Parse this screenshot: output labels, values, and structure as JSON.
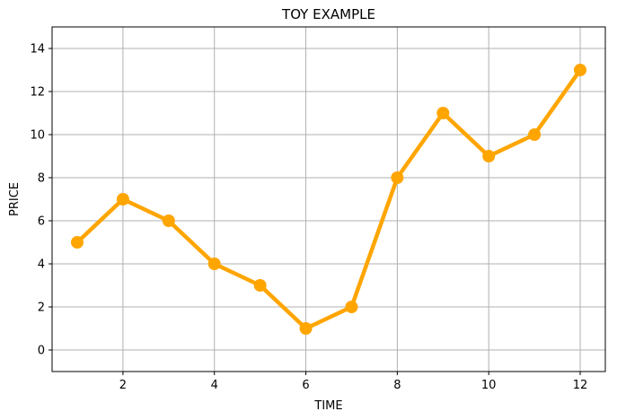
{
  "chart_data": {
    "type": "line",
    "title": "TOY EXAMPLE",
    "xlabel": "TIME",
    "ylabel": "PRICE",
    "x": [
      1,
      2,
      3,
      4,
      5,
      6,
      7,
      8,
      9,
      10,
      11,
      12
    ],
    "series": [
      {
        "values": [
          5,
          7,
          6,
          4,
          3,
          1,
          2,
          8,
          11,
          9,
          10,
          13
        ],
        "color": "#ffa500",
        "marker": "circle"
      }
    ],
    "xlim": [
      0.45,
      12.55
    ],
    "ylim": [
      -1,
      15
    ],
    "xticks": [
      2,
      4,
      6,
      8,
      10,
      12
    ],
    "yticks": [
      0,
      2,
      4,
      6,
      8,
      10,
      12,
      14
    ],
    "grid": true,
    "grid_color": "#b0b0b0",
    "legend": false
  }
}
